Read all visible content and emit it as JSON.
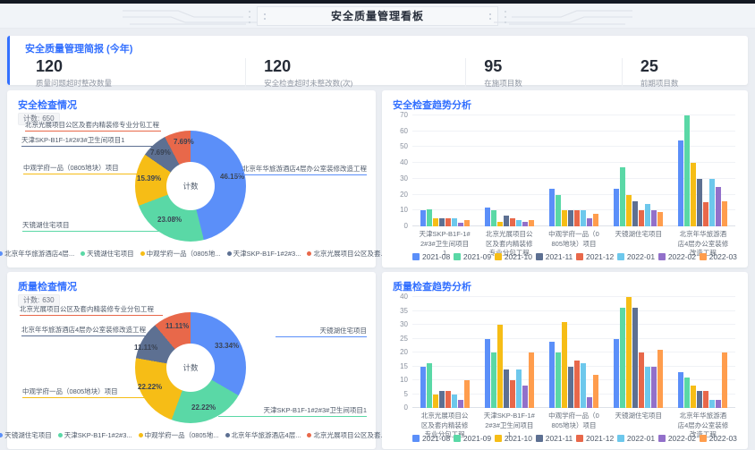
{
  "header": {
    "title": "安全质量管理看板"
  },
  "summary": {
    "title": "安全质量管理简报 (今年)",
    "stats": [
      {
        "value": "120",
        "label": "质量问题超时整改数量"
      },
      {
        "value": "120",
        "label": "安全检查超时未整改数(次)"
      },
      {
        "value": "95",
        "label": "在施项目数"
      },
      {
        "value": "25",
        "label": "前期项目数"
      }
    ]
  },
  "palette": [
    "#5B8FF9",
    "#5AD8A6",
    "#F6BD16",
    "#5D7092",
    "#E8684A",
    "#6DC8EC",
    "#9270CA",
    "#FF9D4D"
  ],
  "chart_data": [
    {
      "id": "safety_inspection_donut",
      "type": "pie",
      "title": "安全检查情况",
      "count_label": "计数:",
      "count_value": "650",
      "center_label": "计数",
      "slices": [
        {
          "label": "北京年华旅游酒店4层办公室装修改造工程",
          "pct": 46.15,
          "pct_label": "46.15%",
          "color": "#5B8FF9"
        },
        {
          "label": "天镜湖住宅项目",
          "pct": 23.08,
          "pct_label": "23.08%",
          "color": "#5AD8A6"
        },
        {
          "label": "中观学府一品（0805地块）项目",
          "pct": 15.39,
          "pct_label": "15.39%",
          "color": "#F6BD16"
        },
        {
          "label": "天津SKP-B1F-1#2#3#卫生间项目1",
          "pct": 7.69,
          "pct_label": "7.69%",
          "color": "#5D7092"
        },
        {
          "label": "北京光展项目公区及套内精装修专业分包工程",
          "pct": 7.69,
          "pct_label": "7.69%",
          "color": "#E8684A"
        }
      ],
      "legend": [
        "北京年华旅游酒店4层...",
        "天镜湖住宅项目",
        "中观学府一品（0805地...",
        "天津SKP-B1F-1#2#3...",
        "北京光展项目公区及套..."
      ]
    },
    {
      "id": "safety_trend_bar",
      "type": "bar",
      "title": "安全检查趋势分析",
      "ylim": [
        0,
        70
      ],
      "ytick": 10,
      "grid": true,
      "legend_position": "bottom",
      "categories": [
        "天津SKP-B1F-1#2#3#卫生间项目1",
        "北京光展项目公区及套内精装修专业分包工程",
        "中观学府一品（0805地块）项目",
        "天镜湖住宅项目",
        "北京年华旅游酒店4层办公室装修改造工程"
      ],
      "series": [
        {
          "name": "2021-08",
          "values": [
            10,
            12,
            24,
            24,
            54
          ]
        },
        {
          "name": "2021-09",
          "values": [
            11,
            10,
            20,
            37,
            70
          ]
        },
        {
          "name": "2021-10",
          "values": [
            5,
            3,
            10,
            20,
            40
          ]
        },
        {
          "name": "2021-11",
          "values": [
            5,
            7,
            10,
            16,
            30
          ]
        },
        {
          "name": "2021-12",
          "values": [
            5,
            5,
            10,
            10,
            15
          ]
        },
        {
          "name": "2022-01",
          "values": [
            5,
            4,
            10,
            14,
            30
          ]
        },
        {
          "name": "2022-02",
          "values": [
            2,
            3,
            5,
            10,
            25
          ]
        },
        {
          "name": "2022-03",
          "values": [
            4,
            4,
            8,
            9,
            16
          ]
        }
      ]
    },
    {
      "id": "quality_inspection_donut",
      "type": "pie",
      "title": "质量检查情况",
      "count_label": "计数:",
      "count_value": "630",
      "center_label": "计数",
      "slices": [
        {
          "label": "天镜湖住宅项目",
          "pct": 33.34,
          "pct_label": "33.34%",
          "color": "#5B8FF9"
        },
        {
          "label": "天津SKP-B1F-1#2#3#卫生间项目1",
          "pct": 22.22,
          "pct_label": "22.22%",
          "color": "#5AD8A6"
        },
        {
          "label": "中观学府一品（0805地块）项目",
          "pct": 22.22,
          "pct_label": "22.22%",
          "color": "#F6BD16"
        },
        {
          "label": "北京年华旅游酒店4层办公室装修改造工程",
          "pct": 11.11,
          "pct_label": "11.11%",
          "color": "#5D7092"
        },
        {
          "label": "北京光展项目公区及套内精装修专业分包工程",
          "pct": 11.11,
          "pct_label": "11.11%",
          "color": "#E8684A"
        }
      ],
      "legend": [
        "天镜湖住宅项目",
        "天津SKP-B1F-1#2#3...",
        "中观学府一品（0805地...",
        "北京年华旅游酒店4层...",
        "北京光展项目公区及套..."
      ]
    },
    {
      "id": "quality_trend_bar",
      "type": "bar",
      "title": "质量检查趋势分析",
      "ylim": [
        0,
        40
      ],
      "ytick": 5,
      "grid": true,
      "legend_position": "bottom",
      "categories": [
        "北京光展项目公区及套内精装修专业分包工程",
        "天津SKP-B1F-1#2#3#卫生间项目1",
        "中观学府一品（0805地块）项目",
        "天镜湖住宅项目",
        "北京年华旅游酒店4层办公室装修改造工程"
      ],
      "series": [
        {
          "name": "2021-08",
          "values": [
            15,
            25,
            24,
            25,
            13
          ]
        },
        {
          "name": "2021-09",
          "values": [
            16,
            20,
            20,
            36,
            11
          ]
        },
        {
          "name": "2021-10",
          "values": [
            5,
            30,
            31,
            40,
            8
          ]
        },
        {
          "name": "2021-11",
          "values": [
            6,
            14,
            15,
            36,
            6
          ]
        },
        {
          "name": "2021-12",
          "values": [
            6,
            10,
            17,
            20,
            6
          ]
        },
        {
          "name": "2022-01",
          "values": [
            5,
            14,
            16,
            15,
            3
          ]
        },
        {
          "name": "2022-02",
          "values": [
            3,
            8,
            4,
            15,
            3
          ]
        },
        {
          "name": "2022-03",
          "values": [
            10,
            20,
            12,
            21,
            20
          ]
        }
      ]
    }
  ]
}
